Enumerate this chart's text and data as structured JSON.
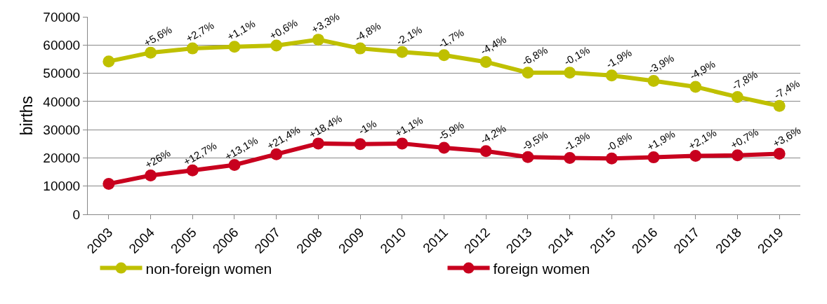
{
  "chart_data": {
    "type": "line",
    "ylabel": "births",
    "categories": [
      "2003",
      "2004",
      "2005",
      "2006",
      "2007",
      "2008",
      "2009",
      "2010",
      "2011",
      "2012",
      "2013",
      "2014",
      "2015",
      "2016",
      "2017",
      "2018",
      "2019"
    ],
    "series": [
      {
        "name": "non-foreign women",
        "color": "#bfc000",
        "values": [
          54200,
          57300,
          58800,
          59400,
          59800,
          61900,
          58800,
          57500,
          56400,
          54000,
          50200,
          50200,
          49200,
          47300,
          45200,
          41600,
          38400
        ]
      },
      {
        "name": "foreign women",
        "color": "#c8001e",
        "values": [
          10800,
          13800,
          15600,
          17500,
          21300,
          25100,
          24900,
          25100,
          23600,
          22400,
          20300,
          20000,
          19800,
          20200,
          20700,
          20900,
          21500
        ]
      }
    ],
    "ylim": [
      0,
      70000
    ],
    "yticks": [
      0,
      10000,
      20000,
      30000,
      40000,
      50000,
      60000,
      70000
    ],
    "grid": "y",
    "legend": "bottom",
    "marker": "circle",
    "line_style": "solid",
    "annotations": [
      {
        "text": "+5,6%",
        "x": "2004",
        "y": 57300
      },
      {
        "text": "+2,7%",
        "x": "2005",
        "y": 58800
      },
      {
        "text": "+1,1%",
        "x": "2006",
        "y": 59400
      },
      {
        "text": "+0,6%",
        "x": "2007",
        "y": 59800
      },
      {
        "text": "+3,3%",
        "x": "2008",
        "y": 61900
      },
      {
        "text": "-4,8%",
        "x": "2009",
        "y": 58800
      },
      {
        "text": "-2,1%",
        "x": "2010",
        "y": 57500
      },
      {
        "text": "-1,7%",
        "x": "2011",
        "y": 56400
      },
      {
        "text": "-4,4%",
        "x": "2012",
        "y": 54000
      },
      {
        "text": "-6,8%",
        "x": "2013",
        "y": 50200
      },
      {
        "text": "-0,1%",
        "x": "2014",
        "y": 50200
      },
      {
        "text": "-1,9%",
        "x": "2015",
        "y": 49200
      },
      {
        "text": "-3,9%",
        "x": "2016",
        "y": 47300
      },
      {
        "text": "-4,9%",
        "x": "2017",
        "y": 45200
      },
      {
        "text": "-7,8%",
        "x": "2018",
        "y": 41600
      },
      {
        "text": "-7,4%",
        "x": "2019",
        "y": 38400
      },
      {
        "text": "+26%",
        "x": "2004",
        "y": 13800
      },
      {
        "text": "+12,7%",
        "x": "2005",
        "y": 15600
      },
      {
        "text": "+13,1%",
        "x": "2006",
        "y": 17500
      },
      {
        "text": "+21,4%",
        "x": "2007",
        "y": 21300
      },
      {
        "text": "+18,4%",
        "x": "2008",
        "y": 25100
      },
      {
        "text": "-1%",
        "x": "2009",
        "y": 24900
      },
      {
        "text": "+1,1%",
        "x": "2010",
        "y": 25100
      },
      {
        "text": "-5,9%",
        "x": "2011",
        "y": 23600
      },
      {
        "text": "-4,2%",
        "x": "2012",
        "y": 22400
      },
      {
        "text": "-9,5%",
        "x": "2013",
        "y": 20300
      },
      {
        "text": "-1,3%",
        "x": "2014",
        "y": 20000
      },
      {
        "text": "-0,8%",
        "x": "2015",
        "y": 19800
      },
      {
        "text": "+1,9%",
        "x": "2016",
        "y": 20200
      },
      {
        "text": "+2,1%",
        "x": "2017",
        "y": 20700
      },
      {
        "text": "+0,7%",
        "x": "2018",
        "y": 20900
      },
      {
        "text": "+3,6%",
        "x": "2019",
        "y": 21500
      }
    ]
  }
}
